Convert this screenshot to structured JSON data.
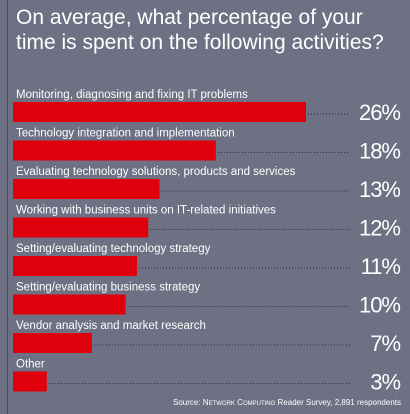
{
  "title": "On average, what percentage of your time is spent on the following activities?",
  "source": {
    "prefix": "Source:",
    "publication": "Network Computing",
    "suffix": "Reader Survey, 2,891 respondents"
  },
  "colors": {
    "background": "#6e7083",
    "bar": "#e0000b",
    "text": "#ffffff",
    "leader": "#2a2c38"
  },
  "chart_data": {
    "type": "bar",
    "orientation": "horizontal",
    "title": "On average, what percentage of your time is spent on the following activities?",
    "categories": [
      "Monitoring, diagnosing and fixing IT problems",
      "Technology integration and implementation",
      "Evaluating technology solutions, products and services",
      "Working with business units on IT-related initiatives",
      "Setting/evaluating technology strategy",
      "Setting/evaluating business strategy",
      "Vendor analysis and market research",
      "Other"
    ],
    "values": [
      26,
      18,
      13,
      12,
      11,
      10,
      7,
      3
    ],
    "value_labels": [
      "26%",
      "18%",
      "13%",
      "12%",
      "11%",
      "10%",
      "7%",
      "3%"
    ],
    "unit": "%",
    "grid": false,
    "legend": "none"
  }
}
